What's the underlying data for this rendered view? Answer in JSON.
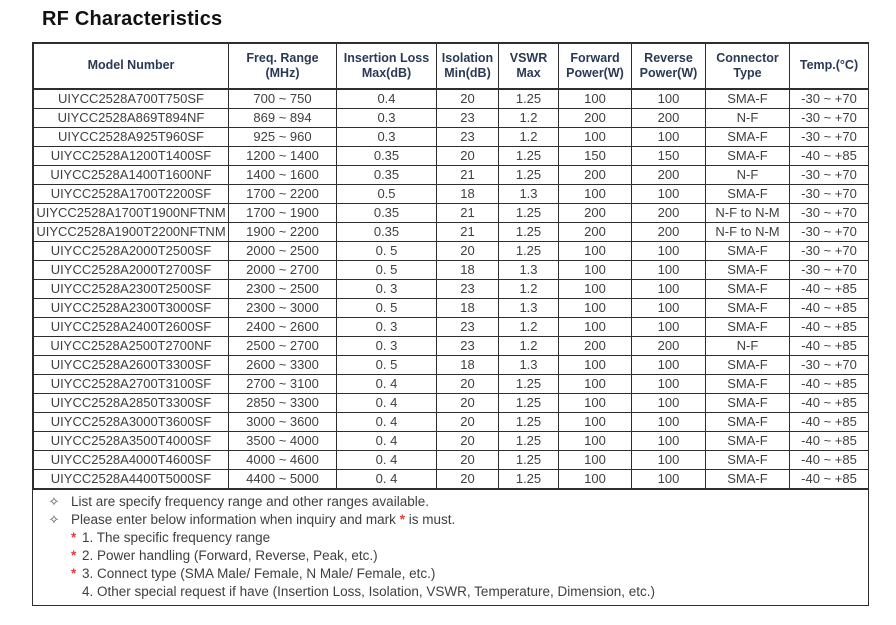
{
  "title": "RF Characteristics",
  "table": {
    "headers": [
      [
        "Model Number"
      ],
      [
        "Freq. Range",
        "(MHz)"
      ],
      [
        "Insertion Loss",
        "Max(dB)"
      ],
      [
        "Isolation",
        "Min(dB)"
      ],
      [
        "VSWR",
        "Max"
      ],
      [
        "Forward",
        "Power(W)"
      ],
      [
        "Reverse",
        "Power(W)"
      ],
      [
        "Connector",
        "Type"
      ],
      [
        "Temp.(°C)"
      ]
    ],
    "rows": [
      [
        "UIYCC2528A700T750SF",
        "700 ~ 750",
        "0.4",
        "20",
        "1.25",
        "100",
        "100",
        "SMA-F",
        "-30 ~ +70"
      ],
      [
        "UIYCC2528A869T894NF",
        "869 ~ 894",
        "0.3",
        "23",
        "1.2",
        "200",
        "200",
        "N-F",
        "-30 ~ +70"
      ],
      [
        "UIYCC2528A925T960SF",
        "925 ~ 960",
        "0.3",
        "23",
        "1.2",
        "100",
        "100",
        "SMA-F",
        "-30 ~ +70"
      ],
      [
        "UIYCC2528A1200T1400SF",
        "1200 ~ 1400",
        "0.35",
        "20",
        "1.25",
        "150",
        "150",
        "SMA-F",
        "-40 ~ +85"
      ],
      [
        "UIYCC2528A1400T1600NF",
        "1400 ~ 1600",
        "0.35",
        "21",
        "1.25",
        "200",
        "200",
        "N-F",
        "-30 ~ +70"
      ],
      [
        "UIYCC2528A1700T2200SF",
        "1700 ~ 2200",
        "0.5",
        "18",
        "1.3",
        "100",
        "100",
        "SMA-F",
        "-30 ~ +70"
      ],
      [
        "UIYCC2528A1700T1900NFTNM",
        "1700 ~ 1900",
        "0.35",
        "21",
        "1.25",
        "200",
        "200",
        "N-F to N-M",
        "-30 ~ +70"
      ],
      [
        "UIYCC2528A1900T2200NFTNM",
        "1900 ~ 2200",
        "0.35",
        "21",
        "1.25",
        "200",
        "200",
        "N-F to N-M",
        "-30 ~ +70"
      ],
      [
        "UIYCC2528A2000T2500SF",
        "2000 ~ 2500",
        "0. 5",
        "20",
        "1.25",
        "100",
        "100",
        "SMA-F",
        "-30 ~ +70"
      ],
      [
        "UIYCC2528A2000T2700SF",
        "2000 ~ 2700",
        "0. 5",
        "18",
        "1.3",
        "100",
        "100",
        "SMA-F",
        "-30 ~ +70"
      ],
      [
        "UIYCC2528A2300T2500SF",
        "2300 ~ 2500",
        "0. 3",
        "23",
        "1.2",
        "100",
        "100",
        "SMA-F",
        "-40 ~ +85"
      ],
      [
        "UIYCC2528A2300T3000SF",
        "2300 ~ 3000",
        "0. 5",
        "18",
        "1.3",
        "100",
        "100",
        "SMA-F",
        "-40 ~ +85"
      ],
      [
        "UIYCC2528A2400T2600SF",
        "2400 ~ 2600",
        "0. 3",
        "23",
        "1.2",
        "100",
        "100",
        "SMA-F",
        "-40 ~ +85"
      ],
      [
        "UIYCC2528A2500T2700NF",
        "2500 ~ 2700",
        "0. 3",
        "23",
        "1.2",
        "200",
        "200",
        "N-F",
        "-40 ~ +85"
      ],
      [
        "UIYCC2528A2600T3300SF",
        "2600 ~ 3300",
        "0. 5",
        "18",
        "1.3",
        "100",
        "100",
        "SMA-F",
        "-30 ~ +70"
      ],
      [
        "UIYCC2528A2700T3100SF",
        "2700 ~ 3100",
        "0. 4",
        "20",
        "1.25",
        "100",
        "100",
        "SMA-F",
        "-40 ~ +85"
      ],
      [
        "UIYCC2528A2850T3300SF",
        "2850 ~ 3300",
        "0. 4",
        "20",
        "1.25",
        "100",
        "100",
        "SMA-F",
        "-40 ~ +85"
      ],
      [
        "UIYCC2528A3000T3600SF",
        "3000 ~ 3600",
        "0. 4",
        "20",
        "1.25",
        "100",
        "100",
        "SMA-F",
        "-40 ~ +85"
      ],
      [
        "UIYCC2528A3500T4000SF",
        "3500 ~ 4000",
        "0. 4",
        "20",
        "1.25",
        "100",
        "100",
        "SMA-F",
        "-40 ~ +85"
      ],
      [
        "UIYCC2528A4000T4600SF",
        "4000 ~ 4600",
        "0. 4",
        "20",
        "1.25",
        "100",
        "100",
        "SMA-F",
        "-40 ~ +85"
      ],
      [
        "UIYCC2528A4400T5000SF",
        "4400 ~ 5000",
        "0. 4",
        "20",
        "1.25",
        "100",
        "100",
        "SMA-F",
        "-40 ~ +85"
      ]
    ]
  },
  "notes": [
    {
      "bullet": "✧",
      "segments": [
        {
          "text": "List are specify frequency range and other ranges available."
        }
      ]
    },
    {
      "bullet": "✧",
      "segments": [
        {
          "text": "Please enter below information when inquiry and mark "
        },
        {
          "text": "*",
          "red": true
        },
        {
          "text": " is must."
        }
      ]
    },
    {
      "bullet": "",
      "star": "*",
      "segments": [
        {
          "text": "1. The specific frequency range"
        }
      ]
    },
    {
      "bullet": "",
      "star": "*",
      "segments": [
        {
          "text": "2. Power handling (Forward, Reverse, Peak, etc.)"
        }
      ]
    },
    {
      "bullet": "",
      "star": "*",
      "segments": [
        {
          "text": "3. Connect type (SMA Male/ Female, N Male/ Female, etc.)"
        }
      ]
    },
    {
      "bullet": "",
      "star": "",
      "segments": [
        {
          "text": "4. Other special request if have (Insertion Loss, Isolation, VSWR, Temperature, Dimension, etc.)"
        }
      ]
    }
  ],
  "colors": {
    "header_text": "#2a3a55",
    "body_text": "#3f3f3f",
    "required_red": "#e03b44",
    "border": "#2e2e2e"
  }
}
